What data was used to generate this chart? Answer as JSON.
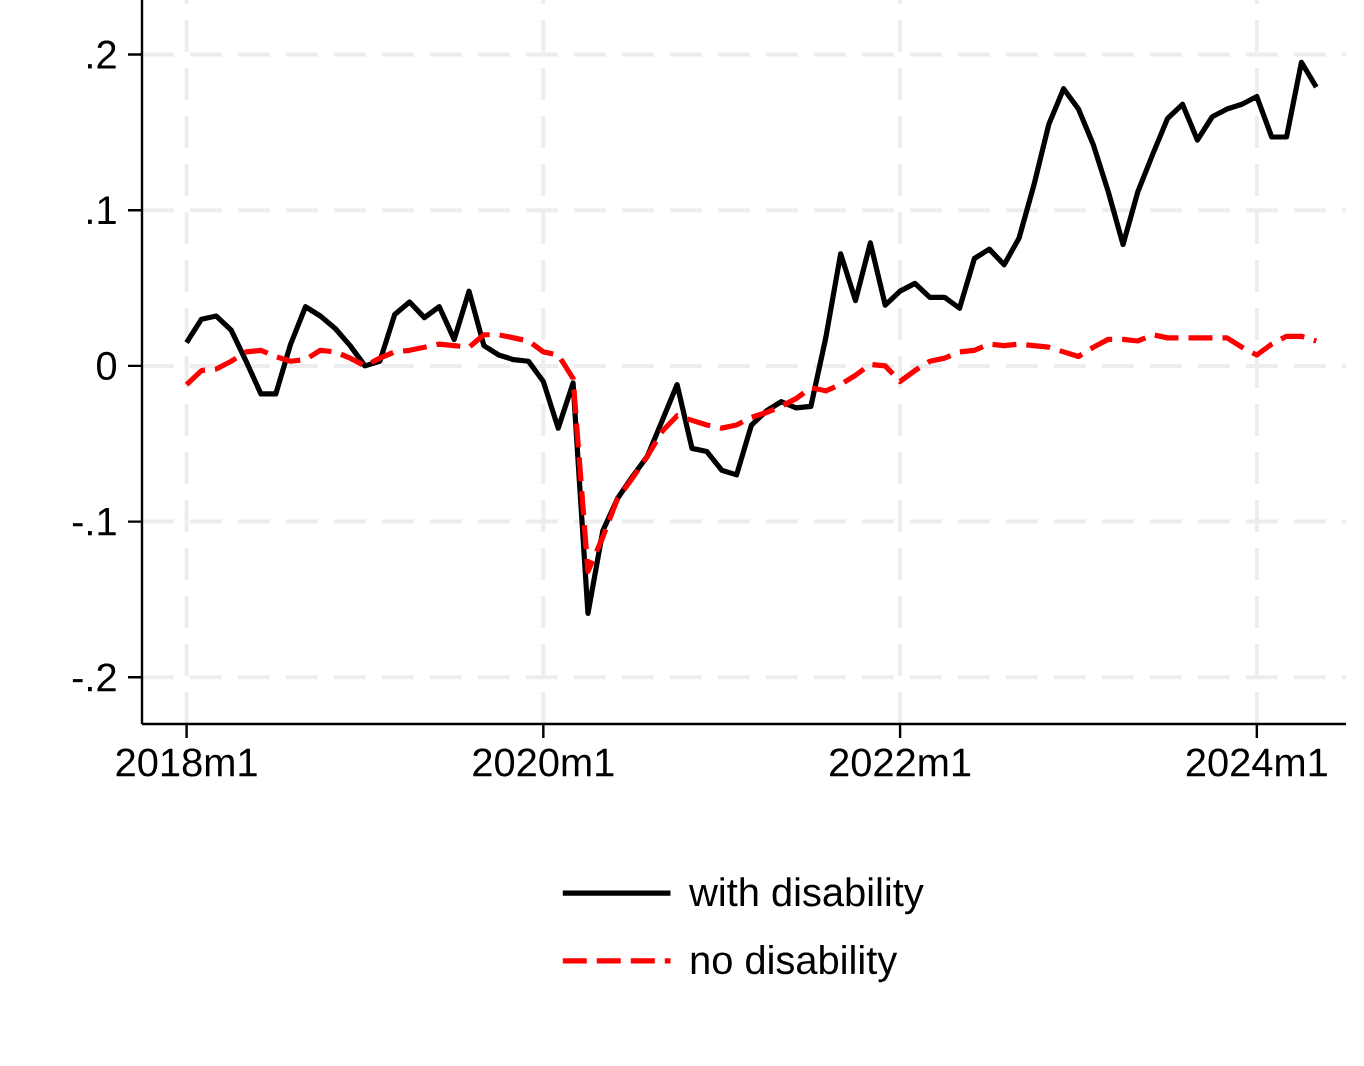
{
  "chart_data": {
    "type": "line",
    "x": [
      "2018-01",
      "2018-02",
      "2018-03",
      "2018-04",
      "2018-05",
      "2018-06",
      "2018-07",
      "2018-08",
      "2018-09",
      "2018-10",
      "2018-11",
      "2018-12",
      "2019-01",
      "2019-02",
      "2019-03",
      "2019-04",
      "2019-05",
      "2019-06",
      "2019-07",
      "2019-08",
      "2019-09",
      "2019-10",
      "2019-11",
      "2019-12",
      "2020-01",
      "2020-02",
      "2020-03",
      "2020-04",
      "2020-05",
      "2020-06",
      "2020-07",
      "2020-08",
      "2020-09",
      "2020-10",
      "2020-11",
      "2020-12",
      "2021-01",
      "2021-02",
      "2021-03",
      "2021-04",
      "2021-05",
      "2021-06",
      "2021-07",
      "2021-08",
      "2021-09",
      "2021-10",
      "2021-11",
      "2021-12",
      "2022-01",
      "2022-02",
      "2022-03",
      "2022-04",
      "2022-05",
      "2022-06",
      "2022-07",
      "2022-08",
      "2022-09",
      "2022-10",
      "2022-11",
      "2022-12",
      "2023-01",
      "2023-02",
      "2023-03",
      "2023-04",
      "2023-05",
      "2023-06",
      "2023-07",
      "2023-08",
      "2023-09",
      "2023-10",
      "2023-11",
      "2023-12",
      "2024-01",
      "2024-02",
      "2024-03",
      "2024-04",
      "2024-05"
    ],
    "series": [
      {
        "name": "with disability",
        "color": "#000000",
        "line_style": "solid",
        "values": [
          0.015,
          0.03,
          0.032,
          0.023,
          0.003,
          -0.018,
          -0.018,
          0.014,
          0.038,
          0.032,
          0.024,
          0.013,
          0.0,
          0.003,
          0.033,
          0.041,
          0.031,
          0.038,
          0.017,
          0.048,
          0.013,
          0.007,
          0.004,
          0.003,
          -0.01,
          -0.04,
          -0.011,
          -0.159,
          -0.106,
          -0.085,
          -0.071,
          -0.058,
          -0.035,
          -0.012,
          -0.053,
          -0.055,
          -0.067,
          -0.07,
          -0.038,
          -0.029,
          -0.023,
          -0.027,
          -0.026,
          0.018,
          0.072,
          0.042,
          0.079,
          0.039,
          0.048,
          0.053,
          0.044,
          0.044,
          0.037,
          0.069,
          0.075,
          0.065,
          0.082,
          0.116,
          0.155,
          0.178,
          0.165,
          0.142,
          0.112,
          0.078,
          0.112,
          0.136,
          0.159,
          0.168,
          0.145,
          0.16,
          0.165,
          0.168,
          0.173,
          0.147,
          0.147,
          0.195,
          0.179
        ]
      },
      {
        "name": "no disability",
        "color": "#ff0000",
        "line_style": "dashed",
        "values": [
          -0.012,
          -0.003,
          -0.002,
          0.003,
          0.009,
          0.01,
          0.006,
          0.003,
          0.004,
          0.01,
          0.009,
          0.005,
          0.0,
          0.005,
          0.009,
          0.01,
          0.012,
          0.014,
          0.013,
          0.012,
          0.02,
          0.02,
          0.018,
          0.016,
          0.009,
          0.007,
          -0.008,
          -0.132,
          -0.11,
          -0.085,
          -0.072,
          -0.058,
          -0.042,
          -0.032,
          -0.035,
          -0.038,
          -0.04,
          -0.038,
          -0.033,
          -0.03,
          -0.026,
          -0.021,
          -0.014,
          -0.016,
          -0.012,
          -0.006,
          0.001,
          0.0,
          -0.01,
          -0.003,
          0.003,
          0.005,
          0.009,
          0.01,
          0.014,
          0.013,
          0.014,
          0.013,
          0.012,
          0.009,
          0.006,
          0.012,
          0.017,
          0.017,
          0.016,
          0.02,
          0.018,
          0.018,
          0.018,
          0.018,
          0.018,
          0.012,
          0.007,
          0.014,
          0.019,
          0.019,
          0.016
        ]
      }
    ],
    "xlim": [
      "2017-10",
      "2024-07"
    ],
    "xticks": [
      {
        "value": "2018-01",
        "label": "2018m1"
      },
      {
        "value": "2020-01",
        "label": "2020m1"
      },
      {
        "value": "2022-01",
        "label": "2022m1"
      },
      {
        "value": "2024-01",
        "label": "2024m1"
      }
    ],
    "ylim": [
      -0.23,
      0.235
    ],
    "yticks": [
      {
        "value": -0.2,
        "label": "-.2"
      },
      {
        "value": -0.1,
        "label": "-.1"
      },
      {
        "value": 0,
        "label": "0"
      },
      {
        "value": 0.1,
        "label": ".1"
      },
      {
        "value": 0.2,
        "label": ".2"
      }
    ],
    "grid": true,
    "legend": "bottom",
    "marker": "none"
  }
}
